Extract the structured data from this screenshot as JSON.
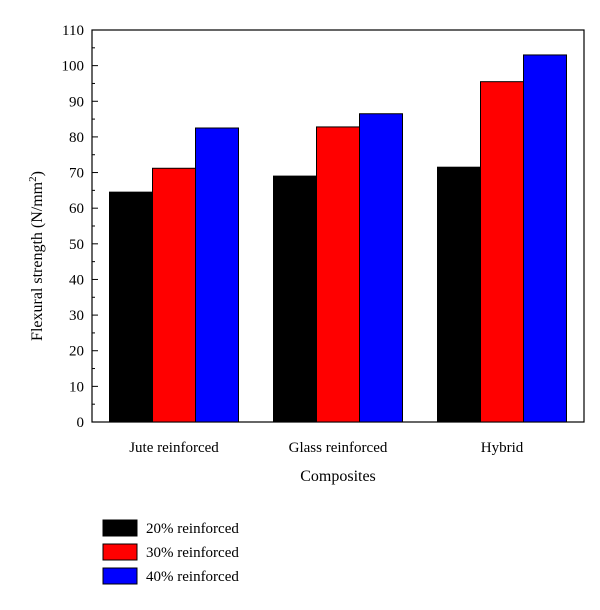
{
  "chart_data": {
    "type": "bar",
    "categories": [
      "Jute reinforced",
      "Glass reinforced",
      "Hybrid"
    ],
    "series": [
      {
        "name": "20% reinforced",
        "color": "#000000",
        "values": [
          64.5,
          69,
          71.5
        ]
      },
      {
        "name": "30% reinforced",
        "color": "#ff0000",
        "values": [
          71.2,
          82.8,
          95.5
        ]
      },
      {
        "name": "40% reinforced",
        "color": "#0000ff",
        "values": [
          82.5,
          86.5,
          103
        ]
      }
    ],
    "xlabel": "Composites",
    "ylabel": "Flexural strength (N/mm",
    "ylabel_superscript": "2",
    "ylabel_suffix": ")",
    "ylim": [
      0,
      110
    ],
    "yticks": [
      0,
      10,
      20,
      30,
      40,
      50,
      60,
      70,
      80,
      90,
      100,
      110
    ],
    "grid": false,
    "legend_position": "bottom-left"
  }
}
